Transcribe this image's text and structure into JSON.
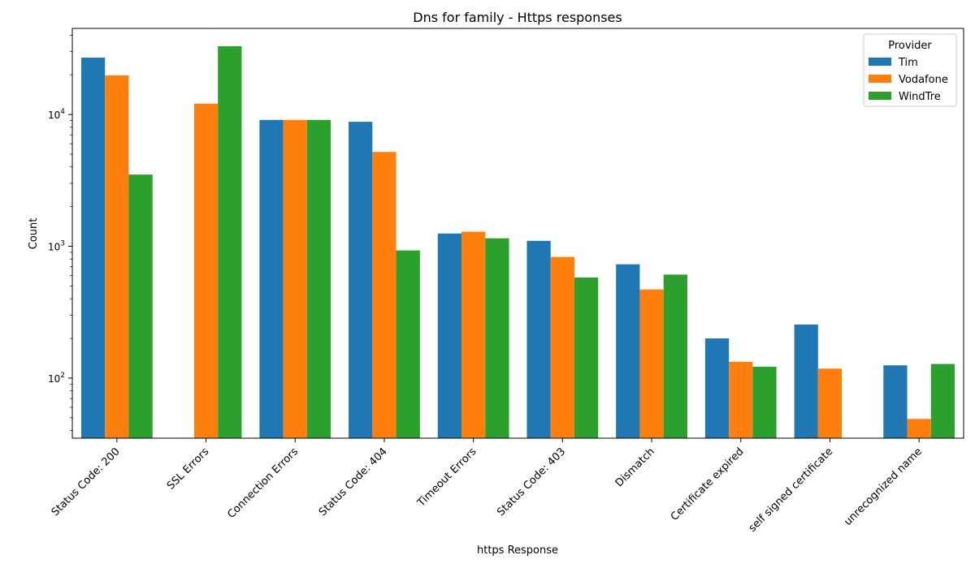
{
  "chart_data": {
    "type": "bar",
    "title": "Dns for family - Https responses",
    "xlabel": "https Response",
    "ylabel": "Count",
    "yscale": "log",
    "ylim": [
      35,
      45000
    ],
    "y_ticks": [
      {
        "value": 100,
        "label_base": "10",
        "label_exp": "2"
      },
      {
        "value": 1000,
        "label_base": "10",
        "label_exp": "3"
      },
      {
        "value": 10000,
        "label_base": "10",
        "label_exp": "4"
      }
    ],
    "categories": [
      "Status Code: 200",
      "SSL Errors",
      "Connection Errors",
      "Status Code: 404",
      "Timeout Errors",
      "Status Code: 403",
      "Dismatch",
      "Certificate expired",
      "self signed certificate",
      "unrecognized name"
    ],
    "series": [
      {
        "name": "Tim",
        "color": "#1f77b4",
        "values": [
          27000,
          null,
          9100,
          8800,
          1250,
          1100,
          730,
          200,
          255,
          125
        ]
      },
      {
        "name": "Vodafone",
        "color": "#ff7f0e",
        "values": [
          19800,
          12100,
          9100,
          5200,
          1290,
          830,
          470,
          133,
          118,
          49
        ]
      },
      {
        "name": "WindTre",
        "color": "#2ca02c",
        "values": [
          3500,
          33000,
          9100,
          930,
          1150,
          580,
          610,
          122,
          null,
          128
        ]
      }
    ],
    "legend": {
      "title": "Provider",
      "position": "top-right"
    },
    "grid": false
  }
}
